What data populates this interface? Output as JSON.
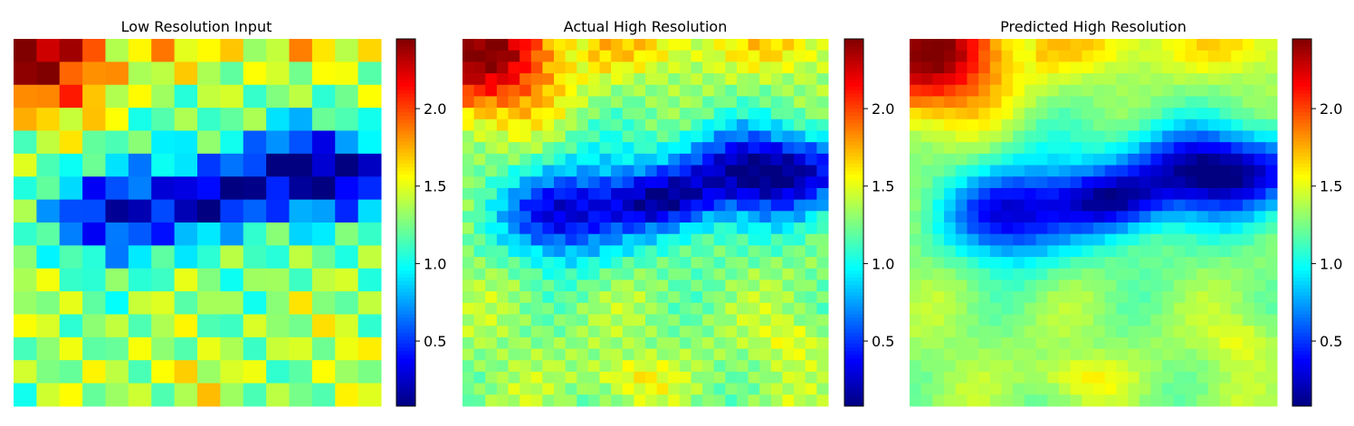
{
  "chart_data": [
    {
      "type": "heatmap",
      "title": "Low Resolution Input",
      "grid": [
        16,
        16
      ],
      "colormap": "jet",
      "colorbar": {
        "vmin": 0.08,
        "vmax": 2.45,
        "ticks": [
          0.5,
          1.0,
          1.5,
          2.0
        ],
        "tick_labels": [
          "0.5",
          "1.0",
          "1.5",
          "2.0"
        ]
      },
      "axes": "off"
    },
    {
      "type": "heatmap",
      "title": "Actual High Resolution",
      "grid": [
        32,
        32
      ],
      "colormap": "jet",
      "colorbar": {
        "vmin": 0.08,
        "vmax": 2.45,
        "ticks": [
          0.5,
          1.0,
          1.5,
          2.0
        ],
        "tick_labels": [
          "0.5",
          "1.0",
          "1.5",
          "2.0"
        ]
      },
      "axes": "off"
    },
    {
      "type": "heatmap",
      "title": "Predicted High Resolution",
      "grid": [
        32,
        32
      ],
      "colormap": "jet",
      "colorbar": {
        "vmin": 0.08,
        "vmax": 2.45,
        "ticks": [
          0.5,
          1.0,
          1.5,
          2.0
        ],
        "tick_labels": [
          "0.5",
          "1.0",
          "1.5",
          "2.0"
        ]
      },
      "axes": "off"
    }
  ]
}
